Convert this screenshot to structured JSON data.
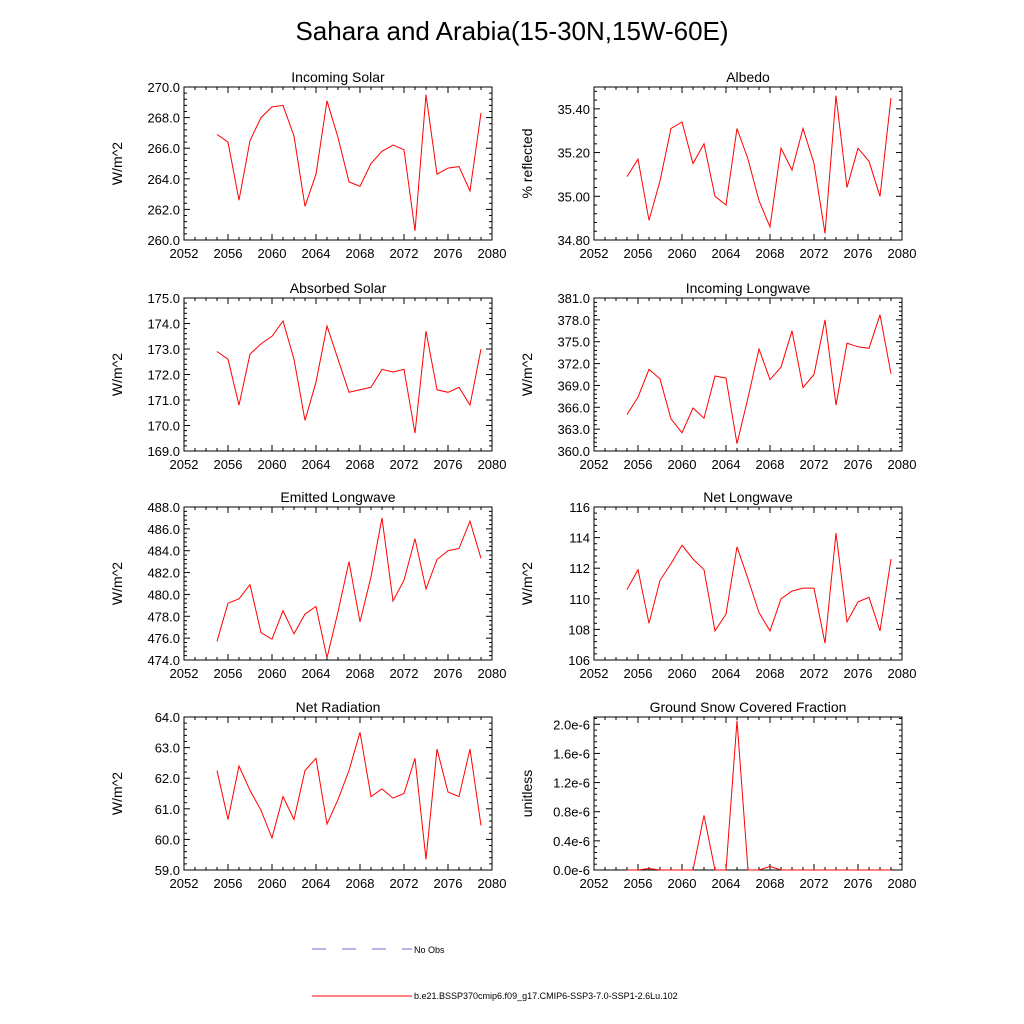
{
  "title": "Sahara and Arabia(15-30N,15W-60E)",
  "colors": {
    "series": "#ff0000",
    "obs": "#6b6bd6",
    "axis": "#000000"
  },
  "legend": {
    "obs_label": "No Obs",
    "series_label": "b.e21.BSSP370cmip6.f09_g17.CMIP6-SSP3-7.0-SSP1-2.6Lu.102"
  },
  "chart_data": [
    {
      "type": "line",
      "title": "Incoming Solar",
      "ylabel": "W/m^2",
      "xlim": [
        2052,
        2080
      ],
      "xticks": [
        2052,
        2056,
        2060,
        2064,
        2068,
        2072,
        2076,
        2080
      ],
      "ylim": [
        260,
        270
      ],
      "yticks": [
        "260.0",
        "262.0",
        "264.0",
        "266.0",
        "268.0",
        "270.0"
      ],
      "x": [
        2055,
        2056,
        2057,
        2058,
        2059,
        2060,
        2061,
        2062,
        2063,
        2064,
        2065,
        2066,
        2067,
        2068,
        2069,
        2070,
        2071,
        2072,
        2073,
        2074,
        2075,
        2076,
        2077,
        2078,
        2079
      ],
      "values": [
        266.9,
        266.4,
        262.6,
        266.5,
        268.0,
        268.7,
        268.8,
        266.8,
        262.2,
        264.3,
        269.1,
        266.7,
        263.8,
        263.5,
        265.0,
        265.8,
        266.2,
        265.9,
        260.6,
        269.5,
        264.3,
        264.7,
        264.8,
        263.2,
        268.3
      ]
    },
    {
      "type": "line",
      "title": "Albedo",
      "ylabel": "% reflected",
      "xlim": [
        2052,
        2080
      ],
      "xticks": [
        2052,
        2056,
        2060,
        2064,
        2068,
        2072,
        2076,
        2080
      ],
      "ylim": [
        34.8,
        35.5
      ],
      "yticks": [
        "34.80",
        "35.00",
        "35.20",
        "35.40"
      ],
      "x": [
        2055,
        2056,
        2057,
        2058,
        2059,
        2060,
        2061,
        2062,
        2063,
        2064,
        2065,
        2066,
        2067,
        2068,
        2069,
        2070,
        2071,
        2072,
        2073,
        2074,
        2075,
        2076,
        2077,
        2078,
        2079
      ],
      "values": [
        35.09,
        35.17,
        34.89,
        35.07,
        35.31,
        35.34,
        35.15,
        35.24,
        35.0,
        34.96,
        35.31,
        35.17,
        34.98,
        34.86,
        35.22,
        35.12,
        35.31,
        35.15,
        34.83,
        35.46,
        35.04,
        35.22,
        35.16,
        35.0,
        35.45
      ]
    },
    {
      "type": "line",
      "title": "Absorbed Solar",
      "ylabel": "W/m^2",
      "xlim": [
        2052,
        2080
      ],
      "xticks": [
        2052,
        2056,
        2060,
        2064,
        2068,
        2072,
        2076,
        2080
      ],
      "ylim": [
        169,
        175
      ],
      "yticks": [
        "169.0",
        "170.0",
        "171.0",
        "172.0",
        "173.0",
        "174.0",
        "175.0"
      ],
      "x": [
        2055,
        2056,
        2057,
        2058,
        2059,
        2060,
        2061,
        2062,
        2063,
        2064,
        2065,
        2066,
        2067,
        2068,
        2069,
        2070,
        2071,
        2072,
        2073,
        2074,
        2075,
        2076,
        2077,
        2078,
        2079
      ],
      "values": [
        172.9,
        172.6,
        170.8,
        172.8,
        173.2,
        173.5,
        174.1,
        172.6,
        170.2,
        171.7,
        173.9,
        172.6,
        171.3,
        171.4,
        171.5,
        172.2,
        172.1,
        172.2,
        169.7,
        173.7,
        171.4,
        171.3,
        171.5,
        170.8,
        173.0
      ]
    },
    {
      "type": "line",
      "title": "Incoming Longwave",
      "ylabel": "W/m^2",
      "xlim": [
        2052,
        2080
      ],
      "xticks": [
        2052,
        2056,
        2060,
        2064,
        2068,
        2072,
        2076,
        2080
      ],
      "ylim": [
        360,
        381
      ],
      "yticks": [
        "360.0",
        "363.0",
        "366.0",
        "369.0",
        "372.0",
        "375.0",
        "378.0",
        "381.0"
      ],
      "x": [
        2055,
        2056,
        2057,
        2058,
        2059,
        2060,
        2061,
        2062,
        2063,
        2064,
        2065,
        2066,
        2067,
        2068,
        2069,
        2070,
        2071,
        2072,
        2073,
        2074,
        2075,
        2076,
        2077,
        2078,
        2079
      ],
      "values": [
        365.0,
        367.4,
        371.2,
        369.9,
        364.4,
        362.5,
        365.9,
        364.5,
        370.3,
        370.0,
        361.0,
        367.3,
        374.0,
        369.8,
        371.5,
        376.5,
        368.7,
        370.5,
        378.0,
        366.3,
        374.8,
        374.3,
        374.1,
        378.7,
        370.6
      ]
    },
    {
      "type": "line",
      "title": "Emitted Longwave",
      "ylabel": "W/m^2",
      "xlim": [
        2052,
        2080
      ],
      "xticks": [
        2052,
        2056,
        2060,
        2064,
        2068,
        2072,
        2076,
        2080
      ],
      "ylim": [
        474,
        488
      ],
      "yticks": [
        "474.0",
        "476.0",
        "478.0",
        "480.0",
        "482.0",
        "484.0",
        "486.0",
        "488.0"
      ],
      "x": [
        2055,
        2056,
        2057,
        2058,
        2059,
        2060,
        2061,
        2062,
        2063,
        2064,
        2065,
        2066,
        2067,
        2068,
        2069,
        2070,
        2071,
        2072,
        2073,
        2074,
        2075,
        2076,
        2077,
        2078,
        2079
      ],
      "values": [
        475.7,
        479.2,
        479.6,
        480.9,
        476.5,
        475.9,
        478.5,
        476.4,
        478.2,
        478.9,
        474.2,
        478.4,
        483.0,
        477.5,
        481.6,
        487.0,
        479.4,
        481.3,
        485.1,
        480.5,
        483.2,
        484.0,
        484.2,
        486.7,
        483.3
      ]
    },
    {
      "type": "line",
      "title": "Net Longwave",
      "ylabel": "W/m^2",
      "xlim": [
        2052,
        2080
      ],
      "xticks": [
        2052,
        2056,
        2060,
        2064,
        2068,
        2072,
        2076,
        2080
      ],
      "ylim": [
        106,
        116
      ],
      "yticks": [
        "106",
        "108",
        "110",
        "112",
        "114",
        "116"
      ],
      "x": [
        2055,
        2056,
        2057,
        2058,
        2059,
        2060,
        2061,
        2062,
        2063,
        2064,
        2065,
        2066,
        2067,
        2068,
        2069,
        2070,
        2071,
        2072,
        2073,
        2074,
        2075,
        2076,
        2077,
        2078,
        2079
      ],
      "values": [
        110.6,
        111.9,
        108.4,
        111.2,
        112.3,
        113.5,
        112.6,
        111.9,
        107.9,
        109.0,
        113.4,
        111.3,
        109.1,
        107.9,
        110.0,
        110.5,
        110.7,
        110.7,
        107.1,
        114.3,
        108.5,
        109.8,
        110.1,
        107.9,
        112.6
      ]
    },
    {
      "type": "line",
      "title": "Net Radiation",
      "ylabel": "W/m^2",
      "xlim": [
        2052,
        2080
      ],
      "xticks": [
        2052,
        2056,
        2060,
        2064,
        2068,
        2072,
        2076,
        2080
      ],
      "ylim": [
        59,
        64
      ],
      "yticks": [
        "59.0",
        "60.0",
        "61.0",
        "62.0",
        "63.0",
        "64.0"
      ],
      "x": [
        2055,
        2056,
        2057,
        2058,
        2059,
        2060,
        2061,
        2062,
        2063,
        2064,
        2065,
        2066,
        2067,
        2068,
        2069,
        2070,
        2071,
        2072,
        2073,
        2074,
        2075,
        2076,
        2077,
        2078,
        2079
      ],
      "values": [
        62.25,
        60.65,
        62.4,
        61.6,
        60.95,
        60.05,
        61.4,
        60.65,
        62.25,
        62.65,
        60.5,
        61.3,
        62.25,
        63.5,
        61.4,
        61.65,
        61.35,
        61.5,
        62.65,
        59.35,
        62.95,
        61.55,
        61.4,
        62.95,
        60.45
      ]
    },
    {
      "type": "line",
      "title": "Ground Snow Covered Fraction",
      "ylabel": "unitless",
      "xlim": [
        2052,
        2080
      ],
      "xticks": [
        2052,
        2056,
        2060,
        2064,
        2068,
        2072,
        2076,
        2080
      ],
      "ylim": [
        0,
        2.1e-06
      ],
      "ytickvals": [
        0,
        4e-07,
        8e-07,
        1.2e-06,
        1.6e-06,
        2e-06
      ],
      "yticks": [
        "0.0e-6",
        "0.4e-6",
        "0.8e-6",
        "1.2e-6",
        "1.6e-6",
        "2.0e-6"
      ],
      "x": [
        2055,
        2056,
        2057,
        2058,
        2059,
        2060,
        2061,
        2062,
        2063,
        2064,
        2065,
        2066,
        2067,
        2068,
        2069,
        2070,
        2071,
        2072,
        2073,
        2074,
        2075,
        2076,
        2077,
        2078,
        2079
      ],
      "values": [
        0,
        0,
        2e-08,
        0,
        0,
        0,
        0,
        7.5e-07,
        0,
        0,
        2.05e-06,
        0,
        0,
        5e-08,
        0,
        0,
        0,
        0,
        0,
        0,
        0,
        0,
        0,
        0,
        0
      ]
    }
  ]
}
